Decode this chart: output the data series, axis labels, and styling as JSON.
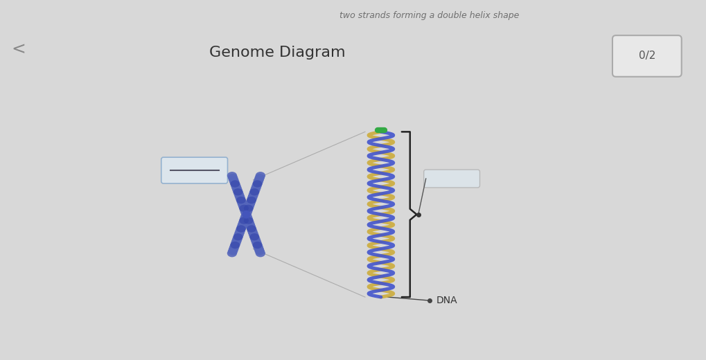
{
  "title": "Genome Diagram",
  "score_label": "0/2",
  "dna_label": "DNA",
  "back_text": "two strands forming a double helix shape",
  "bg_color": "#d8d8d8",
  "title_color": "#333333",
  "chromosome_color": "#5555aa",
  "chromosome_dark": "#3333aa",
  "helix_color1": "#4455cc",
  "helix_color2": "#ccaa33",
  "helix_green": "#33aa44",
  "line_color": "#888888",
  "box_color": "#bbccdd",
  "score_box_color": "#e8e8e8",
  "figsize": [
    10.2,
    5.2
  ],
  "dpi": 100
}
